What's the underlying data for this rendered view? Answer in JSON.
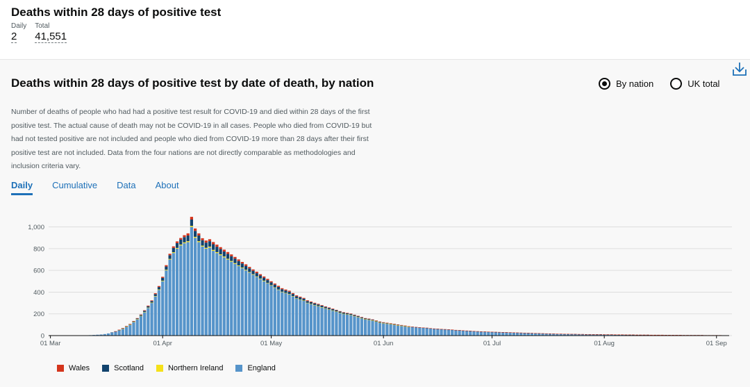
{
  "header": {
    "title": "Deaths within 28 days of positive test",
    "daily_label": "Daily",
    "daily_value": "2",
    "total_label": "Total",
    "total_value": "41,551"
  },
  "card": {
    "title": "Deaths within 28 days of positive test by date of death, by nation",
    "description": "Number of deaths of people who had had a positive test result for COVID-19 and died within 28 days of the first positive test. The actual cause of death may not be COVID-19 in all cases. People who died from COVID-19 but had not tested positive are not included and people who died from COVID-19 more than 28 days after their first positive test are not included. Data from the four nations are not directly comparable as methodologies and inclusion criteria vary.",
    "radio_by_nation": "By nation",
    "radio_uk_total": "UK total",
    "download_icon": "download-icon"
  },
  "tabs": [
    {
      "label": "Daily",
      "active": true
    },
    {
      "label": "Cumulative",
      "active": false
    },
    {
      "label": "Data",
      "active": false
    },
    {
      "label": "About",
      "active": false
    }
  ],
  "colors": {
    "wales": "#d4351c",
    "scotland": "#12436d",
    "northern_ireland": "#f5e11a",
    "england": "#5694ca",
    "gridline": "#dddddd",
    "axis": "#505a5f"
  },
  "chart_data": {
    "type": "bar",
    "stacked": true,
    "title": "Deaths within 28 days of positive test by date of death, by nation",
    "xlabel": "",
    "ylabel": "",
    "ylim": [
      0,
      1100
    ],
    "yticks": [
      0,
      200,
      400,
      600,
      800,
      1000
    ],
    "ytick_labels": [
      "0",
      "200",
      "400",
      "600",
      "800",
      "1,000"
    ],
    "x_start_label": "01 Mar",
    "xtick_labels": [
      "01 Mar",
      "01 Apr",
      "01 May",
      "01 Jun",
      "01 Jul",
      "01 Aug",
      "01 Sep"
    ],
    "xtick_day_index": [
      0,
      31,
      61,
      92,
      122,
      153,
      184
    ],
    "legend": [
      "Wales",
      "Scotland",
      "Northern Ireland",
      "England"
    ],
    "series": [
      {
        "name": "Wales",
        "values": [
          0,
          0,
          0,
          0,
          0,
          0,
          0,
          0,
          0,
          0,
          0,
          0,
          0,
          0,
          0,
          0,
          0,
          0,
          1,
          1,
          1,
          2,
          2,
          2,
          3,
          4,
          5,
          6,
          6,
          8,
          9,
          10,
          12,
          13,
          14,
          16,
          15,
          18,
          20,
          25,
          22,
          20,
          18,
          19,
          18,
          20,
          19,
          18,
          17,
          17,
          16,
          15,
          15,
          14,
          14,
          13,
          12,
          13,
          12,
          11,
          11,
          10,
          10,
          10,
          9,
          9,
          9,
          8,
          8,
          7,
          7,
          7,
          6,
          6,
          6,
          5,
          5,
          5,
          5,
          4,
          4,
          4,
          4,
          3,
          3,
          3,
          3,
          3,
          3,
          2,
          2,
          2,
          2,
          2,
          2,
          2,
          2,
          2,
          2,
          1,
          1,
          1,
          1,
          1,
          1,
          1,
          1,
          1,
          1,
          1,
          1,
          1,
          1,
          1,
          1,
          1,
          1,
          1,
          1,
          1,
          1,
          1,
          1,
          1,
          1,
          1,
          1,
          1,
          1,
          1,
          1,
          1,
          1,
          1,
          1,
          1,
          1,
          1,
          1,
          1,
          1,
          1,
          1,
          1,
          1,
          1,
          1,
          1,
          1,
          1,
          1,
          1,
          1,
          1,
          1,
          1,
          1,
          1,
          1,
          1,
          1,
          1,
          1,
          1,
          1,
          1,
          1,
          1,
          1,
          1,
          1,
          1,
          1,
          1,
          1,
          1,
          1,
          1,
          1,
          1,
          1,
          1,
          1,
          1,
          1,
          1,
          1,
          1
        ]
      },
      {
        "name": "Scotland",
        "values": [
          0,
          0,
          0,
          0,
          0,
          0,
          0,
          0,
          0,
          0,
          0,
          0,
          0,
          0,
          0,
          0,
          0,
          1,
          1,
          2,
          3,
          3,
          4,
          5,
          6,
          8,
          10,
          12,
          14,
          18,
          22,
          26,
          30,
          34,
          40,
          44,
          45,
          48,
          52,
          58,
          55,
          52,
          50,
          48,
          50,
          52,
          50,
          48,
          46,
          45,
          44,
          42,
          40,
          38,
          36,
          34,
          32,
          30,
          28,
          28,
          27,
          26,
          25,
          24,
          23,
          22,
          21,
          20,
          19,
          18,
          17,
          16,
          15,
          14,
          14,
          13,
          12,
          12,
          11,
          11,
          10,
          10,
          9,
          9,
          8,
          8,
          7,
          7,
          7,
          6,
          6,
          6,
          5,
          5,
          5,
          5,
          4,
          4,
          4,
          4,
          3,
          3,
          3,
          3,
          3,
          2,
          2,
          2,
          2,
          2,
          2,
          2,
          1,
          1,
          1,
          1,
          1,
          1,
          1,
          1,
          1,
          1,
          1,
          1,
          1,
          1,
          1,
          1,
          1,
          1,
          1,
          1,
          1,
          1,
          1,
          1,
          1,
          1,
          1,
          1,
          1,
          1,
          1,
          1,
          1,
          1,
          1,
          1,
          1,
          1,
          1,
          1,
          1,
          1,
          1,
          1,
          1,
          1,
          1,
          1,
          1,
          1,
          1,
          1,
          1,
          1,
          1,
          1,
          1,
          1,
          1,
          1,
          1,
          1,
          1,
          1,
          1,
          1,
          1,
          1,
          1,
          1,
          1,
          1,
          1,
          1
        ]
      },
      {
        "name": "Northern Ireland",
        "values": [
          0,
          0,
          0,
          0,
          0,
          0,
          0,
          0,
          0,
          0,
          0,
          0,
          0,
          0,
          0,
          0,
          0,
          0,
          0,
          1,
          1,
          1,
          1,
          2,
          2,
          2,
          3,
          3,
          4,
          4,
          5,
          5,
          6,
          6,
          7,
          7,
          8,
          8,
          9,
          10,
          9,
          9,
          8,
          8,
          9,
          9,
          8,
          8,
          8,
          7,
          7,
          7,
          6,
          6,
          6,
          5,
          5,
          5,
          5,
          5,
          4,
          4,
          4,
          4,
          4,
          3,
          3,
          3,
          3,
          3,
          3,
          2,
          2,
          2,
          2,
          2,
          2,
          2,
          2,
          2,
          1,
          1,
          1,
          1,
          1,
          1,
          1,
          1,
          1,
          1,
          1,
          1,
          1,
          1,
          1,
          1,
          1,
          1,
          1,
          1,
          0,
          0,
          0,
          0,
          0,
          0,
          0,
          0,
          0,
          0,
          0,
          0,
          0,
          0,
          0,
          0,
          0,
          0,
          0,
          0,
          0,
          0,
          0,
          0,
          0,
          0,
          0,
          0,
          0,
          0,
          0,
          0,
          0,
          0,
          0,
          0,
          0,
          0,
          0,
          0,
          0,
          0,
          0,
          0,
          0,
          0,
          0,
          0,
          0,
          0,
          0,
          0,
          0,
          0,
          0,
          0,
          0,
          0,
          0,
          0,
          0,
          0,
          0,
          0,
          0,
          0,
          0,
          0,
          0,
          0,
          0,
          0,
          0,
          0,
          0,
          0,
          0,
          0,
          0,
          0,
          0,
          0,
          0,
          0,
          0,
          0,
          0,
          0
        ]
      },
      {
        "name": "England",
        "values": [
          0,
          0,
          0,
          0,
          0,
          0,
          1,
          1,
          2,
          2,
          3,
          4,
          6,
          8,
          10,
          14,
          20,
          28,
          38,
          50,
          64,
          82,
          100,
          125,
          150,
          180,
          215,
          255,
          300,
          360,
          420,
          500,
          600,
          700,
          760,
          800,
          830,
          850,
          860,
          1000,
          900,
          860,
          820,
          800,
          810,
          780,
          760,
          740,
          720,
          700,
          680,
          660,
          640,
          620,
          600,
          580,
          560,
          540,
          520,
          500,
          480,
          460,
          440,
          420,
          400,
          390,
          380,
          360,
          340,
          330,
          320,
          300,
          290,
          280,
          270,
          260,
          250,
          240,
          230,
          220,
          210,
          200,
          195,
          190,
          180,
          170,
          160,
          150,
          145,
          140,
          130,
          120,
          115,
          110,
          105,
          100,
          95,
          90,
          85,
          80,
          78,
          75,
          72,
          70,
          68,
          65,
          62,
          60,
          58,
          56,
          54,
          52,
          50,
          48,
          46,
          44,
          42,
          40,
          38,
          36,
          35,
          34,
          33,
          32,
          31,
          30,
          29,
          28,
          27,
          26,
          25,
          24,
          23,
          22,
          21,
          20,
          19,
          18,
          17,
          16,
          15,
          15,
          14,
          14,
          13,
          13,
          12,
          12,
          11,
          11,
          10,
          10,
          10,
          9,
          9,
          9,
          8,
          8,
          8,
          7,
          7,
          7,
          6,
          6,
          6,
          6,
          5,
          5,
          5,
          5,
          4,
          4,
          4,
          4,
          4,
          3,
          3,
          3,
          3,
          3,
          3,
          2,
          2,
          2,
          2,
          2,
          2,
          2
        ]
      }
    ]
  }
}
